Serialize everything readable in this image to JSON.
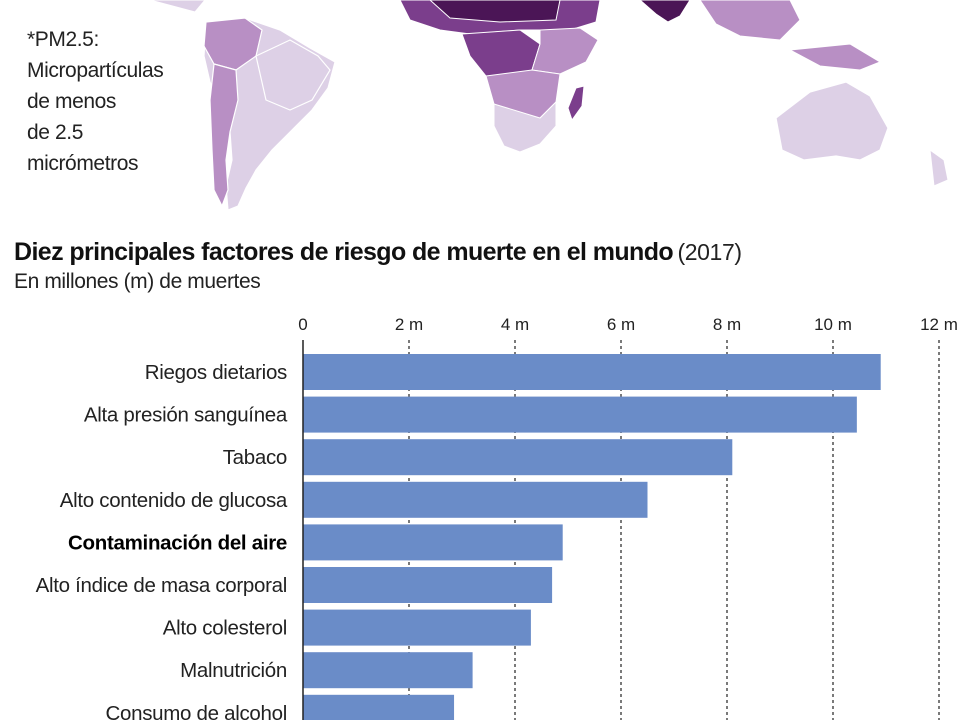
{
  "colors": {
    "bar": "#6a8cc8",
    "map_light": "#ddd0e6",
    "map_mid": "#b88fc4",
    "map_dark": "#7b3e8c",
    "map_darkest": "#4b1556",
    "grid": "#333333"
  },
  "map": {
    "footnote_lines": [
      "*PM2.5:",
      "Micropartículas",
      "de menos",
      "de 2.5",
      "micrómetros"
    ]
  },
  "chart_data": {
    "type": "bar",
    "orientation": "horizontal",
    "title": "Diez principales factores de riesgo de muerte en el mundo",
    "title_suffix": "(2017)",
    "subtitle": "En millones (m) de muertes",
    "xlim": [
      0,
      12
    ],
    "tick_values": [
      0,
      2,
      4,
      6,
      8,
      10,
      12
    ],
    "tick_labels": [
      "0",
      "2 m",
      "4 m",
      "6 m",
      "8 m",
      "10 m",
      "12 m"
    ],
    "grid": "vertical dotted",
    "categories": [
      "Riegos dietarios",
      "Alta presión sanguínea",
      "Tabaco",
      "Alto contenido de glucosa",
      "Contaminación del aire",
      "Alto índice de masa corporal",
      "Alto colesterol",
      "Malnutrición",
      "Consumo de alcohol"
    ],
    "values": [
      10.9,
      10.45,
      8.1,
      6.5,
      4.9,
      4.7,
      4.3,
      3.2,
      2.85
    ],
    "highlighted_category": "Contaminación del aire"
  }
}
